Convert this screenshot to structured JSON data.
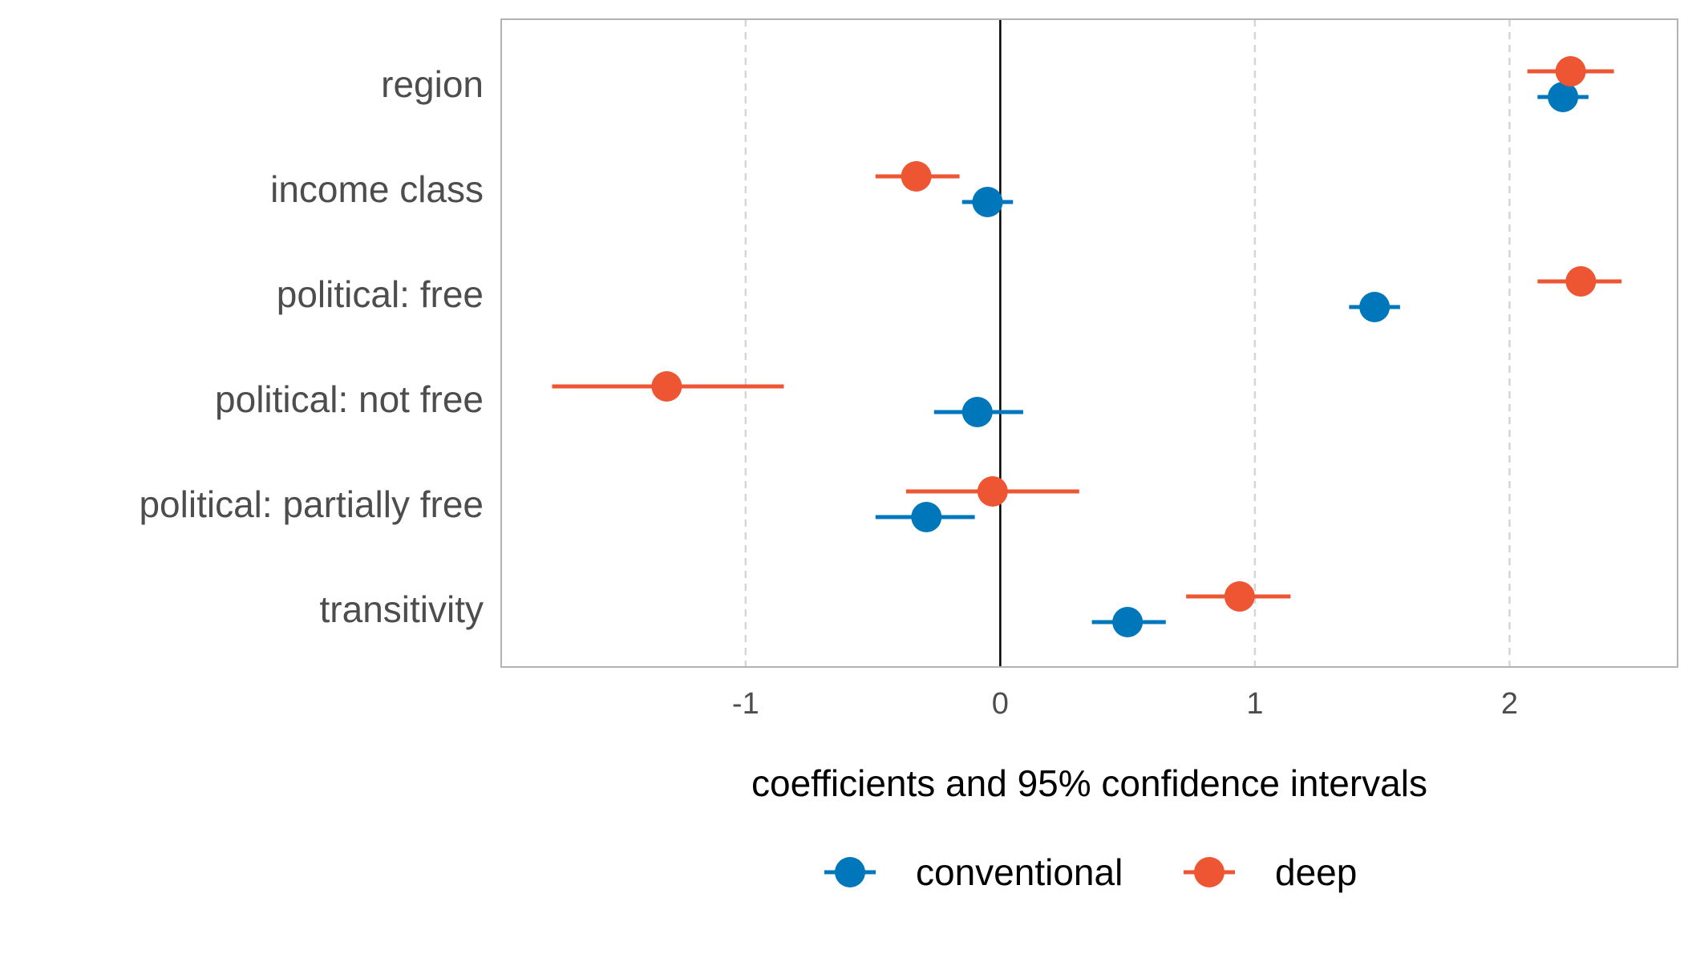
{
  "chart_data": {
    "type": "scatter",
    "subtype": "coefficient-plot-with-confidence-intervals",
    "title": "",
    "xlabel": "coefficients and 95% confidence intervals",
    "ylabel": "",
    "xlim": [
      -1.96,
      2.66
    ],
    "x_ticks": [
      -1,
      0,
      1,
      2
    ],
    "x_tick_labels": [
      "-1",
      "0",
      "1",
      "2"
    ],
    "grid": "vertical-dashed-at-ticks",
    "reference_line": 0,
    "legend_position": "bottom",
    "categories": [
      "region",
      "income class",
      "political: free",
      "political: not free",
      "political: partially free",
      "transitivity"
    ],
    "series": [
      {
        "name": "conventional",
        "color": "#0077bb",
        "estimates": [
          2.21,
          -0.05,
          1.47,
          -0.09,
          -0.29,
          0.5
        ],
        "lower": [
          2.11,
          -0.15,
          1.37,
          -0.26,
          -0.49,
          0.36
        ],
        "upper": [
          2.31,
          0.05,
          1.57,
          0.09,
          -0.1,
          0.65
        ]
      },
      {
        "name": "deep",
        "color": "#ee5533",
        "estimates": [
          2.24,
          -0.33,
          2.28,
          -1.31,
          -0.03,
          0.94
        ],
        "lower": [
          2.07,
          -0.49,
          2.11,
          -1.76,
          -0.37,
          0.73
        ],
        "upper": [
          2.41,
          -0.16,
          2.44,
          -0.85,
          0.31,
          1.14
        ]
      }
    ]
  }
}
